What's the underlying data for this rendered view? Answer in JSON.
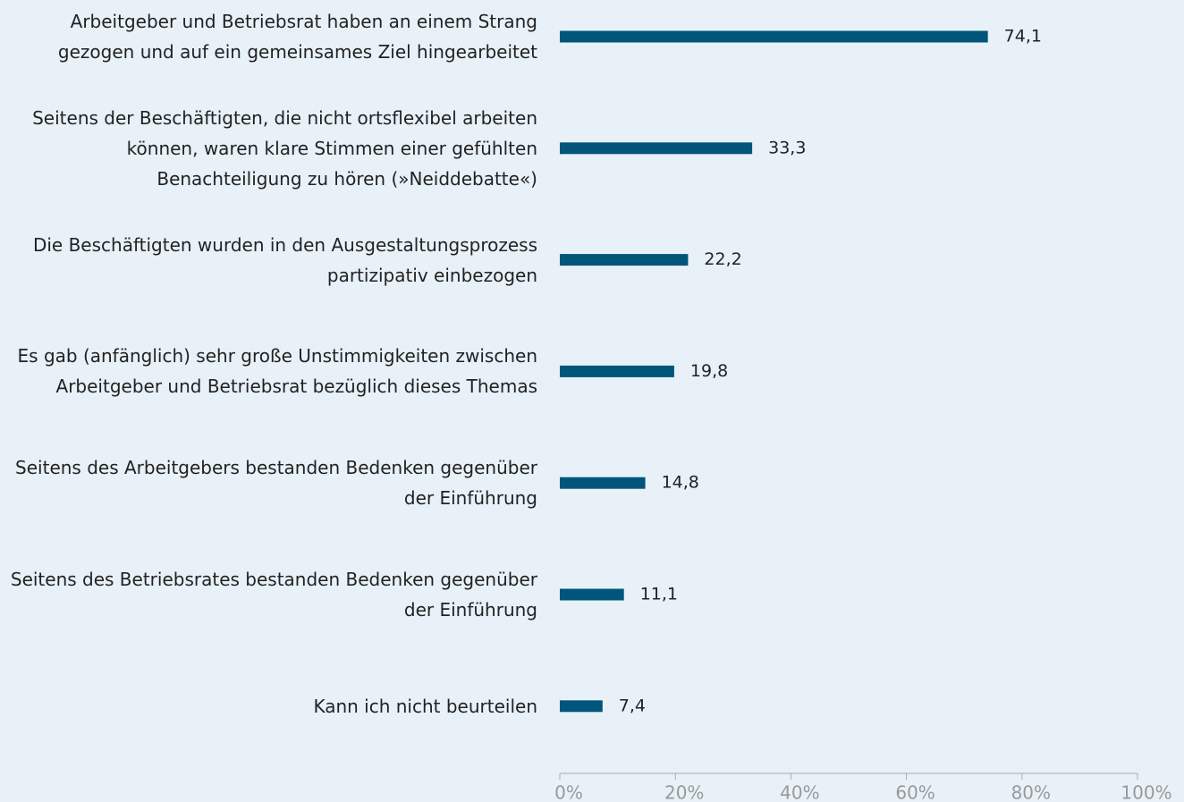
{
  "chart_data": {
    "type": "barh",
    "categories": [
      "Arbeitgeber und Betriebsrat haben an einem Strang\ngezogen und auf ein gemeinsames Ziel hingearbeitet",
      "Seitens der Beschäftigten, die nicht ortsflexibel arbeiten\nkönnen, waren klare Stimmen einer gefühlten\nBenachteiligung zu hören (»Neiddebatte«)",
      "Die Beschäftigten wurden in den Ausgestaltungsprozess\npartizipativ einbezogen",
      "Es gab (anfänglich) sehr große Unstimmigkeiten zwischen\nArbeitgeber und Betriebsrat bezüglich dieses Themas",
      "Seitens des Arbeitgebers bestanden Bedenken gegenüber\nder Einführung",
      "Seitens des Betriebsrates bestanden Bedenken gegenüber\nder Einführung",
      "Kann ich nicht beurteilen"
    ],
    "values": [
      74.1,
      33.3,
      22.2,
      19.8,
      14.8,
      11.1,
      7.4
    ],
    "value_labels": [
      "74,1",
      "33,3",
      "22,2",
      "19,8",
      "14,8",
      "11,1",
      "7,4"
    ],
    "color": "#00557a",
    "xlim": [
      0,
      100
    ],
    "xticks": [
      {
        "value": 0,
        "label": "0%"
      },
      {
        "value": 20,
        "label": "20%"
      },
      {
        "value": 40,
        "label": "40%"
      },
      {
        "value": 60,
        "label": "60%"
      },
      {
        "value": 80,
        "label": "80%"
      },
      {
        "value": 100,
        "label": "100%"
      }
    ],
    "grid": false
  }
}
